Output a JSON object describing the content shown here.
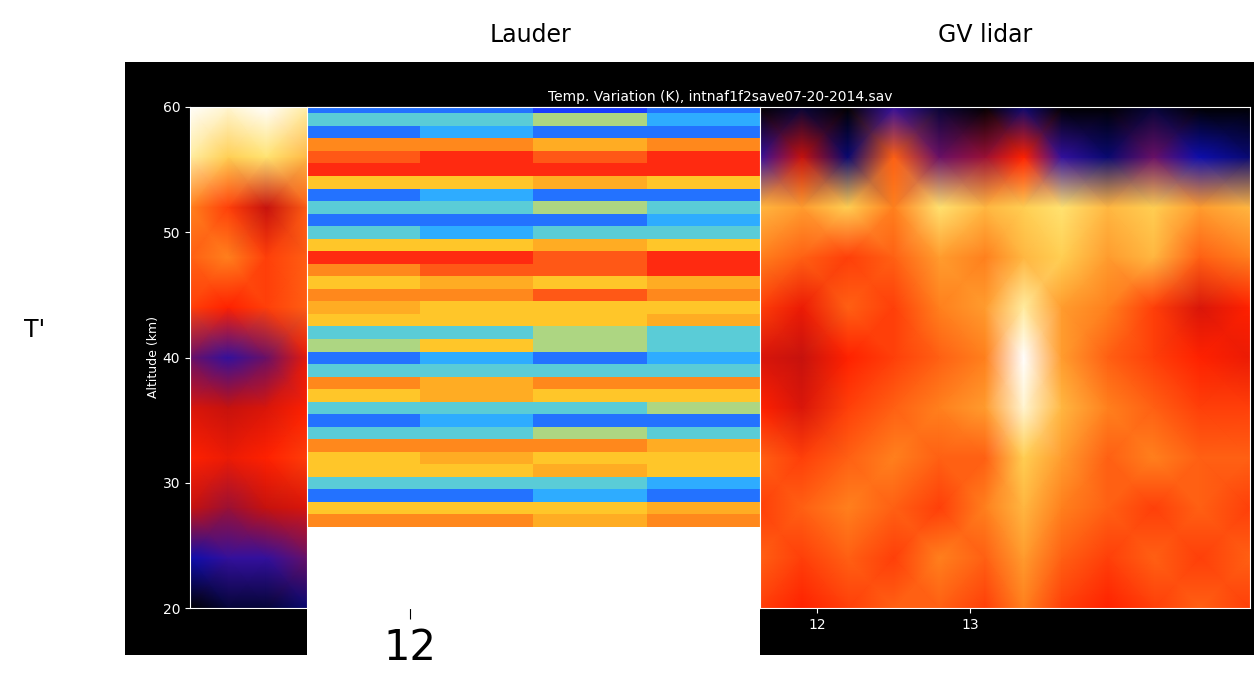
{
  "chart_data": [
    {
      "type": "heatmap",
      "title": "Temp. Variation (K), intnaf1f2save07-20-2014.sav",
      "y_label": "Altitude (km)",
      "annotations": [
        "GV lidar",
        "T'"
      ],
      "xlim": [
        7.9,
        14.83
      ],
      "xticks": [
        12,
        13
      ],
      "ylim": [
        20,
        60
      ],
      "yticks": [
        20,
        30,
        40,
        50,
        60
      ],
      "zlim": [
        -10,
        10
      ],
      "y": [
        20,
        24,
        28,
        32,
        36,
        40,
        44,
        48,
        52,
        56,
        60
      ],
      "panels": [
        {
          "x": [
            7.9,
            8.15,
            8.4,
            8.68
          ],
          "cells": [
            [
              -10,
              -9,
              -9,
              -8
            ],
            [
              -7,
              -6,
              -6,
              -5
            ],
            [
              -3,
              -4,
              -3,
              -2
            ],
            [
              0,
              -1,
              0,
              1
            ],
            [
              -2,
              -3,
              -2,
              0
            ],
            [
              -5,
              -6,
              -5,
              -1
            ],
            [
              1,
              0,
              1,
              2
            ],
            [
              2,
              3,
              1,
              2
            ],
            [
              3,
              1,
              -3,
              2
            ],
            [
              8,
              6,
              7,
              5
            ],
            [
              10,
              9,
              10,
              8
            ]
          ]
        },
        {
          "x": [
            11.62,
            11.9,
            12.2,
            12.5,
            12.8,
            13.1,
            13.35,
            13.6,
            13.9,
            14.2,
            14.5,
            14.83
          ],
          "cells": [
            [
              1,
              0,
              1,
              2,
              2,
              1,
              3,
              1,
              0,
              1,
              2,
              1
            ],
            [
              2,
              1,
              2,
              1,
              3,
              2,
              4,
              2,
              1,
              2,
              1,
              2
            ],
            [
              1,
              2,
              3,
              2,
              1,
              3,
              5,
              3,
              2,
              1,
              2,
              1
            ],
            [
              2,
              1,
              2,
              3,
              2,
              2,
              6,
              4,
              2,
              3,
              2,
              2
            ],
            [
              0,
              -2,
              1,
              2,
              3,
              4,
              9,
              5,
              3,
              2,
              1,
              1
            ],
            [
              -2,
              -3,
              0,
              1,
              2,
              3,
              10,
              4,
              2,
              1,
              0,
              -1
            ],
            [
              1,
              -1,
              2,
              1,
              3,
              4,
              8,
              4,
              3,
              1,
              -2,
              0
            ],
            [
              3,
              2,
              1,
              2,
              4,
              3,
              5,
              6,
              4,
              5,
              2,
              3
            ],
            [
              5,
              4,
              6,
              3,
              7,
              5,
              6,
              7,
              5,
              6,
              4,
              5
            ],
            [
              -6,
              -3,
              -8,
              2,
              -5,
              -4,
              0,
              -6,
              -8,
              -5,
              -7,
              -8
            ],
            [
              -10,
              -9,
              -10,
              -6,
              -9,
              -10,
              -8,
              -10,
              -10,
              -9,
              -10,
              -10
            ]
          ]
        }
      ]
    },
    {
      "type": "heatmap",
      "title": "Lauder",
      "xlim": [
        11.5,
        13.7
      ],
      "xticks": [
        12
      ],
      "ylim": [
        20,
        60
      ],
      "tick_labels": "x",
      "zlim": [
        -5,
        5
      ],
      "y": [
        27,
        28,
        29,
        30,
        31,
        32,
        33,
        34,
        35,
        36,
        37,
        38,
        39,
        40,
        41,
        42,
        43,
        44,
        45,
        46,
        47,
        48,
        49,
        50,
        51,
        52,
        53,
        54,
        55,
        56,
        57,
        58,
        59,
        60
      ],
      "cells": [
        [
          3,
          3,
          2,
          3
        ],
        [
          1,
          1,
          1,
          2
        ],
        [
          -4,
          -4,
          -3,
          -4
        ],
        [
          -2,
          -2,
          -2,
          -3
        ],
        [
          1,
          1,
          2,
          1
        ],
        [
          1,
          2,
          1,
          1
        ],
        [
          3,
          3,
          3,
          2
        ],
        [
          -2,
          -2,
          -1,
          -2
        ],
        [
          -4,
          -3,
          -4,
          -4
        ],
        [
          -2,
          -2,
          -2,
          -1
        ],
        [
          1,
          2,
          1,
          1
        ],
        [
          3,
          2,
          3,
          3
        ],
        [
          -2,
          -2,
          -2,
          -2
        ],
        [
          -4,
          -3,
          -4,
          -3
        ],
        [
          -1,
          1,
          -1,
          -2
        ],
        [
          -2,
          -2,
          -1,
          -2
        ],
        [
          1,
          1,
          1,
          2
        ],
        [
          2,
          1,
          1,
          1
        ],
        [
          3,
          3,
          4,
          3
        ],
        [
          1,
          2,
          1,
          2
        ],
        [
          3,
          4,
          4,
          5
        ],
        [
          5,
          5,
          4,
          5
        ],
        [
          1,
          1,
          2,
          1
        ],
        [
          -2,
          -3,
          -2,
          -2
        ],
        [
          -4,
          -4,
          -4,
          -3
        ],
        [
          -2,
          -2,
          -1,
          -2
        ],
        [
          -4,
          -3,
          -4,
          -4
        ],
        [
          1,
          1,
          2,
          1
        ],
        [
          5,
          5,
          5,
          5
        ],
        [
          4,
          5,
          4,
          5
        ],
        [
          3,
          3,
          2,
          3
        ],
        [
          -4,
          -3,
          -4,
          -4
        ],
        [
          -2,
          -2,
          -1,
          -3
        ],
        [
          -4,
          -4,
          -5,
          -4
        ]
      ]
    }
  ]
}
